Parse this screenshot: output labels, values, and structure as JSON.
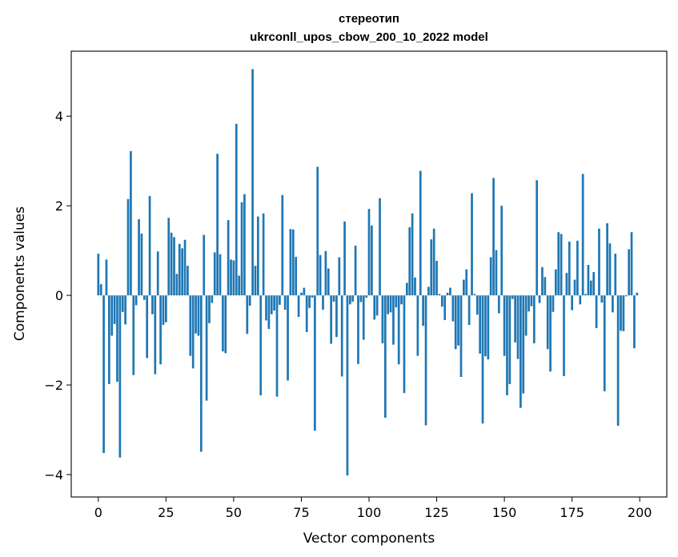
{
  "chart_data": {
    "type": "bar",
    "title_line1": "стереотип",
    "title_line2": "ukrconll_upos_cbow_200_10_2022 model",
    "xlabel": "Vector components",
    "ylabel": "Components values",
    "xlim": [
      -10,
      210
    ],
    "ylim": [
      -4.5,
      5.45
    ],
    "xticks": [
      0,
      25,
      50,
      75,
      100,
      125,
      150,
      175,
      200
    ],
    "yticks": [
      -4,
      -2,
      0,
      2,
      4
    ],
    "ytick_labels": [
      "−4",
      "−2",
      "0",
      "2",
      "4"
    ],
    "bar_color": "#1f77b4",
    "x": [
      0,
      1,
      2,
      3,
      4,
      5,
      6,
      7,
      8,
      9,
      10,
      11,
      12,
      13,
      14,
      15,
      16,
      17,
      18,
      19,
      20,
      21,
      22,
      23,
      24,
      25,
      26,
      27,
      28,
      29,
      30,
      31,
      32,
      33,
      34,
      35,
      36,
      37,
      38,
      39,
      40,
      41,
      42,
      43,
      44,
      45,
      46,
      47,
      48,
      49,
      50,
      51,
      52,
      53,
      54,
      55,
      56,
      57,
      58,
      59,
      60,
      61,
      62,
      63,
      64,
      65,
      66,
      67,
      68,
      69,
      70,
      71,
      72,
      73,
      74,
      75,
      76,
      77,
      78,
      79,
      80,
      81,
      82,
      83,
      84,
      85,
      86,
      87,
      88,
      89,
      90,
      91,
      92,
      93,
      94,
      95,
      96,
      97,
      98,
      99,
      100,
      101,
      102,
      103,
      104,
      105,
      106,
      107,
      108,
      109,
      110,
      111,
      112,
      113,
      114,
      115,
      116,
      117,
      118,
      119,
      120,
      121,
      122,
      123,
      124,
      125,
      126,
      127,
      128,
      129,
      130,
      131,
      132,
      133,
      134,
      135,
      136,
      137,
      138,
      139,
      140,
      141,
      142,
      143,
      144,
      145,
      146,
      147,
      148,
      149,
      150,
      151,
      152,
      153,
      154,
      155,
      156,
      157,
      158,
      159,
      160,
      161,
      162,
      163,
      164,
      165,
      166,
      167,
      168,
      169,
      170,
      171,
      172,
      173,
      174,
      175,
      176,
      177,
      178,
      179,
      180,
      181,
      182,
      183,
      184,
      185,
      186,
      187,
      188,
      189,
      190,
      191,
      192,
      193,
      194,
      195,
      196,
      197,
      198,
      199
    ],
    "values": [
      0.93,
      0.25,
      -3.52,
      0.8,
      -1.98,
      -0.9,
      -0.64,
      -1.93,
      -3.62,
      -0.37,
      -0.65,
      2.15,
      3.22,
      -1.78,
      -0.22,
      1.7,
      1.38,
      -0.1,
      -1.4,
      2.22,
      -0.42,
      -1.76,
      0.98,
      -1.54,
      -0.66,
      -0.6,
      1.73,
      1.4,
      1.3,
      0.48,
      1.15,
      1.05,
      1.24,
      0.66,
      -1.35,
      -1.63,
      -0.85,
      -0.9,
      -3.49,
      1.35,
      -2.35,
      -0.62,
      -0.17,
      0.96,
      3.16,
      0.92,
      -1.25,
      -1.29,
      1.68,
      0.8,
      0.78,
      3.83,
      0.44,
      2.08,
      2.26,
      -0.86,
      -0.23,
      5.05,
      0.66,
      1.76,
      -2.23,
      1.83,
      -0.56,
      -0.75,
      -0.42,
      -0.34,
      -2.26,
      -0.21,
      2.24,
      -0.32,
      -1.9,
      1.48,
      1.47,
      0.86,
      -0.48,
      0.06,
      0.17,
      -0.82,
      -0.28,
      -0.05,
      -3.02,
      2.87,
      0.9,
      -0.32,
      0.99,
      0.6,
      -1.08,
      -0.14,
      -0.93,
      0.85,
      -1.81,
      1.65,
      -4.02,
      -0.2,
      -0.14,
      1.11,
      -1.53,
      -0.15,
      -0.99,
      -0.05,
      1.93,
      1.56,
      -0.54,
      -0.45,
      2.17,
      -1.07,
      -2.73,
      -0.42,
      -0.38,
      -1.1,
      -0.27,
      -1.54,
      -0.2,
      -2.18,
      0.28,
      1.52,
      1.83,
      0.4,
      -1.35,
      2.78,
      -0.68,
      -2.9,
      0.19,
      1.25,
      1.49,
      0.77,
      0.03,
      -0.25,
      -0.55,
      0.06,
      0.17,
      -0.58,
      -1.2,
      -1.12,
      -1.82,
      0.35,
      0.58,
      -0.66,
      2.28,
      0.03,
      -0.43,
      -1.3,
      -2.86,
      -1.36,
      -1.43,
      0.85,
      2.62,
      1.01,
      -0.4,
      2.0,
      -1.35,
      -2.23,
      -1.98,
      -0.08,
      -1.05,
      -1.42,
      -2.51,
      -2.19,
      -0.9,
      -0.36,
      -0.24,
      -1.07,
      2.57,
      -0.17,
      0.63,
      0.41,
      -1.2,
      -1.7,
      -0.37,
      0.58,
      1.41,
      1.37,
      -1.8,
      0.5,
      1.2,
      -0.33,
      0.35,
      1.22,
      -0.2,
      2.71,
      0.03,
      0.68,
      0.33,
      0.52,
      -0.73,
      1.49,
      -0.16,
      -2.14,
      1.61,
      1.16,
      -0.38,
      0.93,
      -2.91,
      -0.79,
      -0.8,
      -0.02,
      1.03,
      1.41,
      -1.18,
      0.06
    ]
  }
}
